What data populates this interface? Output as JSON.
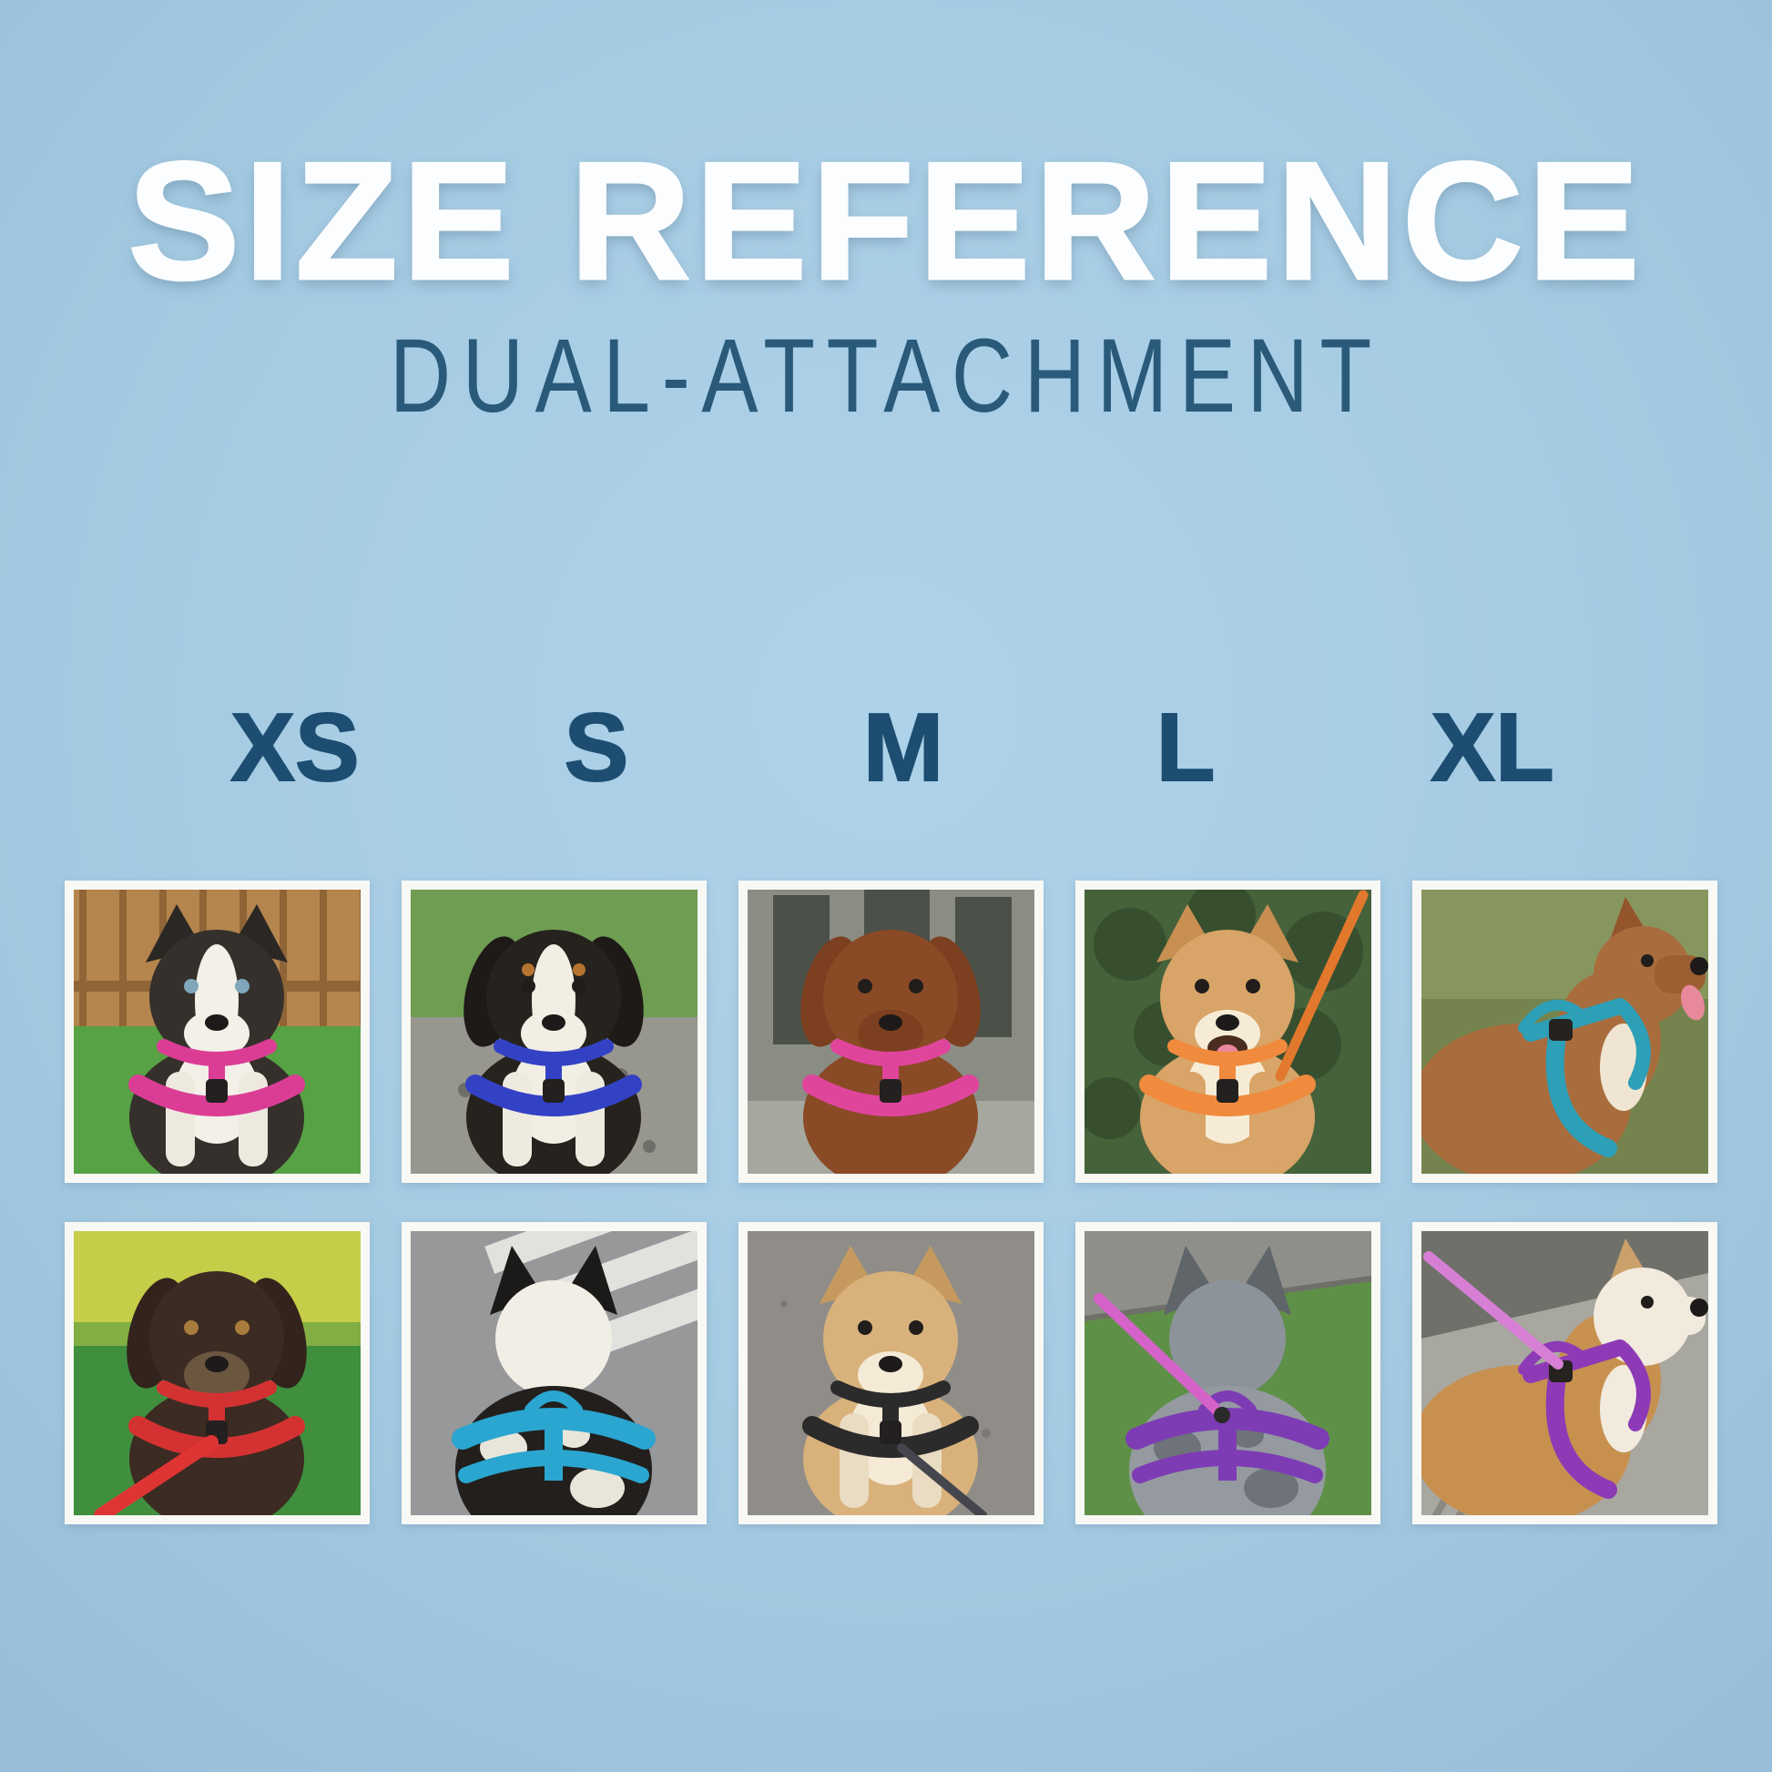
{
  "page": {
    "background_base": "#a5cbe3",
    "background_light": "#aed2e9",
    "background_edge": "#97bed8"
  },
  "header": {
    "title": "SIZE REFERENCE",
    "subtitle": "DUAL-ATTACHMENT",
    "title_color": "#fcfdfe",
    "subtitle_color": "#2a5a7a"
  },
  "size_labels": {
    "color": "#1d4e72",
    "items": [
      "XS",
      "S",
      "M",
      "L",
      "XL"
    ]
  },
  "grid": {
    "frame_color": "#f8f8f5",
    "photos": [
      {
        "size": "XS",
        "row": 1,
        "view": "front",
        "decor": "fence",
        "alt": "Black-and-white Border Collie puppy in a pink harness sitting on grass by a wooden fence",
        "colors": {
          "bg": "#57a244",
          "bgTop": "#b5854e",
          "plank": "#8f6537",
          "fur": "#35302b",
          "ear": "#2b2724",
          "ears": "pointy",
          "blaze": "#f3f0e8",
          "chest": "#f3f0e8",
          "legs": "#eee9df",
          "muzzle": "#f3f0e8",
          "eye": "#7fa6bb",
          "harness": "#db3d95"
        }
      },
      {
        "size": "S",
        "row": 1,
        "view": "front",
        "decor": "rock",
        "alt": "Tricolour Cavalier King Charles Spaniel in a blue harness sitting on a stone wall",
        "colors": {
          "bg": "#97968f",
          "bgTop": "#6f9d52",
          "speckle": "#6e6d68",
          "fur": "#26221e",
          "ear": "#1d1a17",
          "ears": "floppy",
          "blaze": "#f2eee4",
          "chest": "#f2eee4",
          "legs": "#efeadf",
          "muzzle": "#f2eee4",
          "brows": "#b5742f",
          "harness": "#3342c4"
        }
      },
      {
        "size": "M",
        "row": 1,
        "view": "front",
        "decor": "cafe",
        "alt": "Red Goldendoodle in a pink harness sitting outside a cafe",
        "colors": {
          "bg": "#8b8d85",
          "window": "#41463f",
          "ground": "#a6a79e",
          "fur": "#8a4a26",
          "ear": "#7c3f1f",
          "ears": "floppy",
          "muzzle": "#7c3f1f",
          "harness": "#e0459c"
        }
      },
      {
        "size": "L",
        "row": 1,
        "view": "front",
        "decor": "foliage",
        "alt": "Smiling Shiba Inu in an orange harness with an orange lead among greenery",
        "colors": {
          "bg": "#46623b",
          "blob": "#374f2e",
          "fur": "#d8a468",
          "ear": "#c78f50",
          "ears": "pointy",
          "chest": "#f6ecd6",
          "muzzle": "#f6ecd6",
          "smile": "open",
          "tongue": "#e887a0",
          "harness": "#f08a3d",
          "leash": "#e2782c",
          "leashDir": "tr"
        }
      },
      {
        "size": "XL",
        "row": 1,
        "view": "profile",
        "decor": "grass2",
        "alt": "Large brown dog in a teal harness looking up in profile on grass",
        "colors": {
          "bg": "#75844f",
          "bgTop": "#87965e",
          "fur": "#a96c3c",
          "ear": "#93552c",
          "muzzle": "#9b5f31",
          "chest": "#efe5d2",
          "tongue": "#e8899b",
          "harness": "#2d9fb6"
        }
      },
      {
        "size": "XS",
        "row": 2,
        "view": "front",
        "decor": "sunnygrass",
        "alt": "Chocolate doodle in a red harness with a red lead standing on sunny grass",
        "colors": {
          "bg": "#3f8f3f",
          "bgTop": "#c6cd49",
          "fur": "#3c2b22",
          "ear": "#32231c",
          "ears": "floppy",
          "muzzle": "#6b5640",
          "eye": "#a87c3c",
          "harness": "#d43232",
          "leash": "#df3434",
          "leashDir": "dl"
        }
      },
      {
        "size": "S",
        "row": 2,
        "view": "back",
        "decor": "crosswalk",
        "alt": "Black-and-white dog seen from behind in a teal harness on a crosswalk",
        "colors": {
          "bg": "#97989a",
          "stripe": "#e8e8e4",
          "fur": "#221f1d",
          "head": "#f1eee6",
          "ear": "#1c1a18",
          "patches": "#e9e5da",
          "harness": "#2aa6d0"
        }
      },
      {
        "size": "M",
        "row": 2,
        "view": "front",
        "decor": "asphalt",
        "alt": "Cream Shiba Inu in a black harness sitting on a path with a lead",
        "colors": {
          "bg": "#908d88",
          "dot": "#7c7974",
          "leaf": "#95754a",
          "fur": "#d9b17b",
          "ear": "#c69a5e",
          "ears": "pointy",
          "chest": "#f4ead6",
          "muzzle": "#f4ead6",
          "legs": "#e9dcc2",
          "harness": "#2b2b2b",
          "leash": "#45454d",
          "leashDir": "dr"
        }
      },
      {
        "size": "L",
        "row": 2,
        "view": "back",
        "decor": "grasspave",
        "alt": "Grey merle dog seen from behind in a purple harness with a pink lead on grass",
        "colors": {
          "bg": "#5f9048",
          "pave": "#8f8f89",
          "curb": "#6f6f69",
          "fur": "#949aa0",
          "head": "#8d939a",
          "ear": "#5f6569",
          "patches": "#6d7378",
          "harness": "#7d3cb4",
          "leash": "#d562c8"
        }
      },
      {
        "size": "XL",
        "row": 2,
        "view": "profile",
        "decor": "sidewalk",
        "alt": "English Bulldog in a purple harness with a pink lead on a sidewalk",
        "colors": {
          "bg": "#a8a7a0",
          "band": "#70706a",
          "line": "#8b8a82",
          "fur": "#c8904f",
          "head": "#f1eadd",
          "ear": "#caa06b",
          "muzzle": "#f1eadd",
          "chest": "#f1eadd",
          "harness": "#8d3ab6",
          "leash": "#d77fd4",
          "leashDir": "pl"
        }
      }
    ]
  }
}
